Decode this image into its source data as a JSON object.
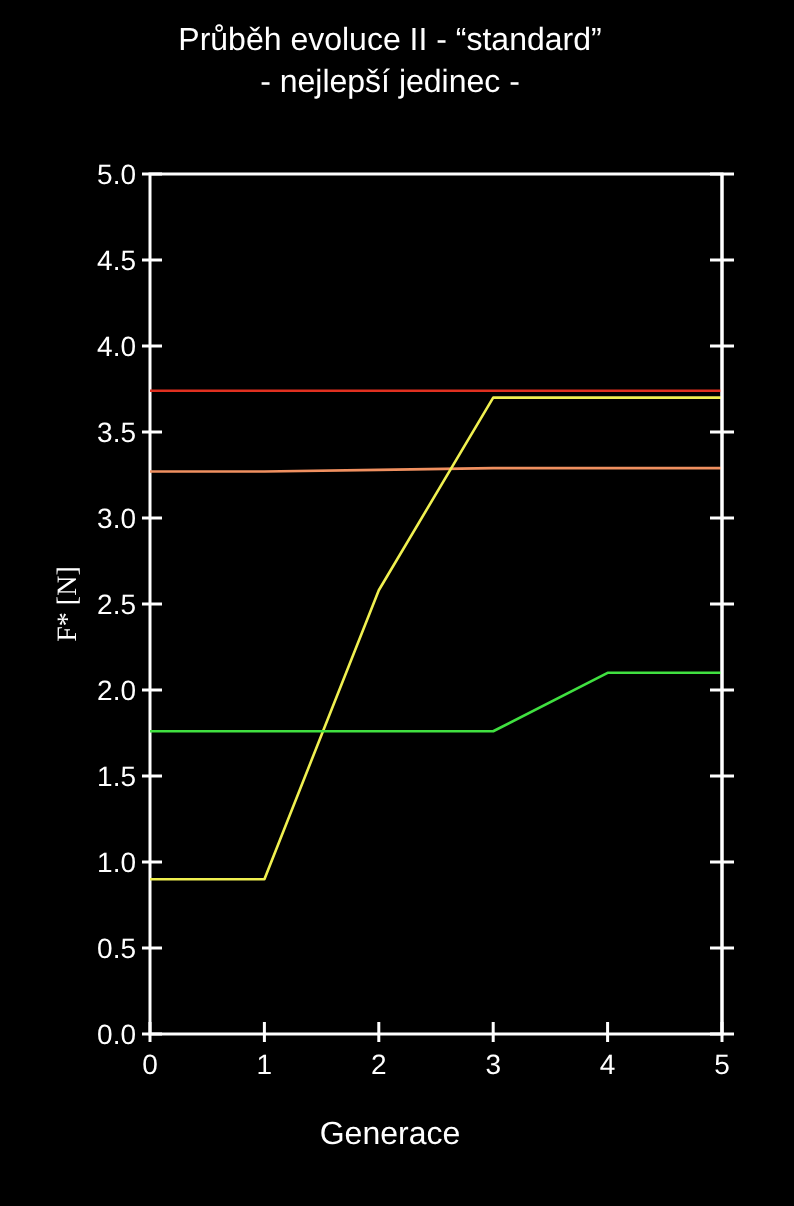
{
  "chart_data": {
    "type": "line",
    "title": "Průběh evoluce II - “standard”",
    "subtitle": "- nejlepší jedinec -",
    "xlabel": "Generace",
    "ylabel": "F* [N]",
    "x": [
      0,
      1,
      2,
      3,
      4,
      5
    ],
    "xlim": [
      0,
      5
    ],
    "xticks": [
      0,
      1,
      2,
      3,
      4,
      5
    ],
    "ylim": [
      0,
      5
    ],
    "yticks": [
      {
        "value": 0,
        "label": "0.0"
      },
      {
        "value": 0.5,
        "label": "0.5"
      },
      {
        "value": 1,
        "label": "1.0"
      },
      {
        "value": 1.5,
        "label": "1.5"
      },
      {
        "value": 2,
        "label": "2.0"
      },
      {
        "value": 2.5,
        "label": "2.5"
      },
      {
        "value": 3,
        "label": "3.0"
      },
      {
        "value": 3.5,
        "label": "3.5"
      },
      {
        "value": 4,
        "label": "4.0"
      },
      {
        "value": 4.5,
        "label": "4.5"
      },
      {
        "value": 5,
        "label": "5.0"
      }
    ],
    "grid": false,
    "marker": "none",
    "line_style": "solid",
    "series": [
      {
        "color": "#e03020",
        "values": [
          3.74,
          3.74,
          3.74,
          3.74,
          3.74,
          3.74
        ]
      },
      {
        "color": "#f09060",
        "values": [
          3.27,
          3.27,
          3.28,
          3.29,
          3.29,
          3.29
        ]
      },
      {
        "color": "#f0f050",
        "values": [
          0.9,
          0.9,
          2.58,
          3.7,
          3.7,
          3.7
        ]
      },
      {
        "color": "#40e040",
        "values": [
          1.76,
          1.76,
          1.76,
          1.76,
          2.1,
          2.1
        ]
      }
    ]
  }
}
